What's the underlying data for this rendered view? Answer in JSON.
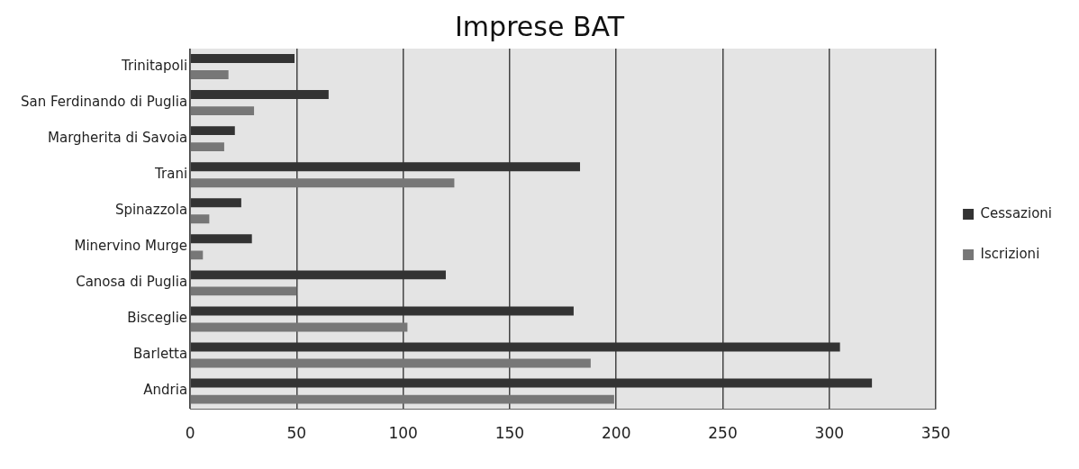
{
  "chart_data": {
    "type": "bar",
    "title": "Imprese BAT",
    "orientation": "horizontal",
    "categories": [
      "Trinitapoli",
      "San Ferdinando di Puglia",
      "Margherita di Savoia",
      "Trani",
      "Spinazzola",
      "Minervino Murge",
      "Canosa di Puglia",
      "Bisceglie",
      "Barletta",
      "Andria"
    ],
    "series": [
      {
        "name": "Cessazioni",
        "color": "#333333",
        "values": [
          49,
          65,
          21,
          183,
          24,
          29,
          120,
          180,
          305,
          320
        ]
      },
      {
        "name": "Iscrizioni",
        "color": "#777777",
        "values": [
          18,
          30,
          16,
          124,
          9,
          6,
          50,
          102,
          188,
          199
        ]
      }
    ],
    "xlim": [
      0,
      350
    ],
    "xticks": [
      0,
      50,
      100,
      150,
      200,
      250,
      300,
      350
    ],
    "grid": "x",
    "legend": "right"
  }
}
